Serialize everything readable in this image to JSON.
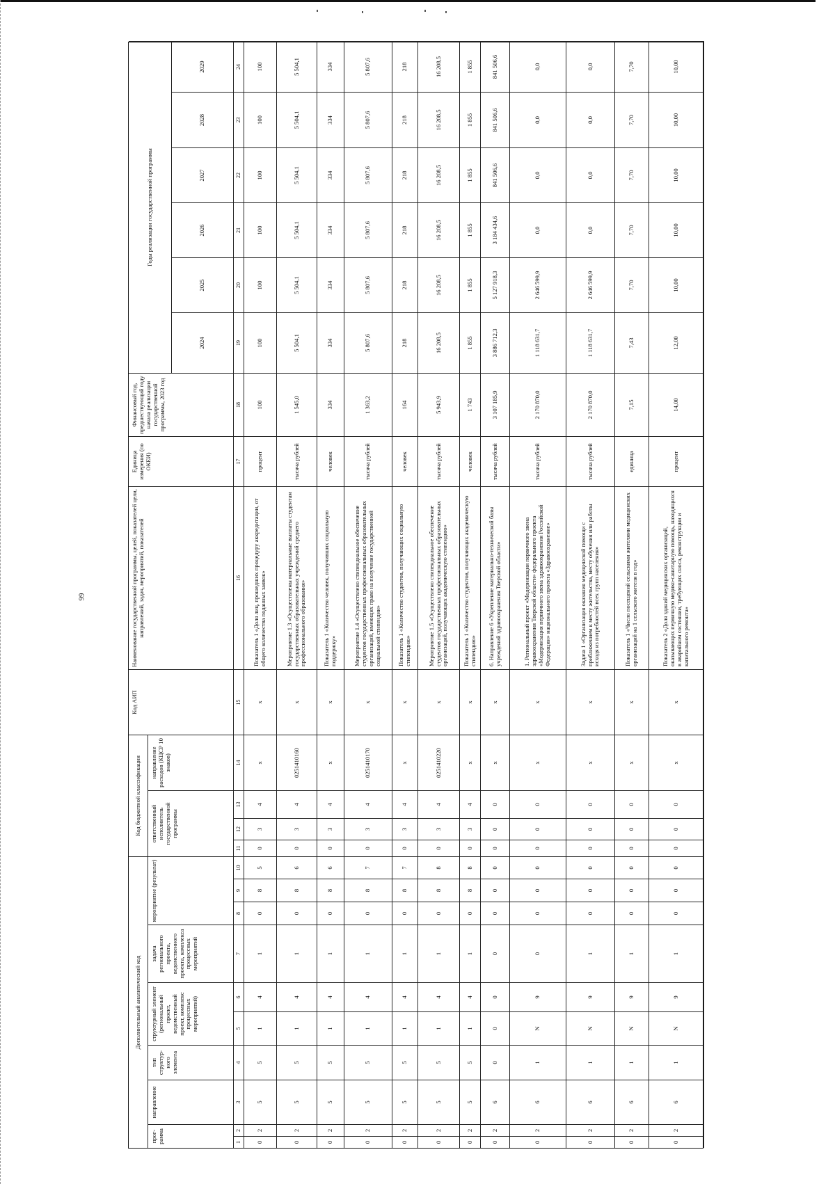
{
  "page_number": "99",
  "header": {
    "dop_code": "Дополнительный аналитический код",
    "kbk": "Код бюджетной классификации",
    "aip": "Код АИП",
    "name": "Наименование государственной программы, целей, показателей цели, направлений, задач, мероприятий, показателей",
    "unit": "Единица измерения (по ОКЕИ)",
    "base_year": "Финансовый год, предшествующий году начала реализации государственной программы, 2023 год",
    "years_group": "Годы реализации государственной программы",
    "program": "прог-рамма",
    "direction": "направление",
    "struct_type": "тип структур-ного элемента",
    "struct_element": "структурный элемент (региональный проект, ведомственный проект, комплекс процессных мероприятий)",
    "task": "задача регионального проекта, ведомственного проекта, комплекса процессных мероприятий",
    "measure": "мероприятие (результат)",
    "executor": "ответственный исполнитель государственной программы",
    "kcsr": "направление расходов (КЦСР 10 знаков)",
    "years": [
      "2024",
      "2025",
      "2026",
      "2027",
      "2028",
      "2029"
    ]
  },
  "column_numbers": [
    "1",
    "2",
    "3",
    "4",
    "5",
    "6",
    "7",
    "8",
    "9",
    "10",
    "11",
    "12",
    "13",
    "14",
    "15",
    "16",
    "17",
    "18",
    "19",
    "20",
    "21",
    "22",
    "23",
    "24"
  ],
  "rows": [
    {
      "codes": [
        "0",
        "2",
        "5",
        "5",
        "1",
        "4",
        "1",
        "0",
        "8",
        "5",
        "0",
        "3",
        "4",
        "x",
        "x"
      ],
      "name": "Показатель 1 «Доля лиц, прошедших процедуру аккредитации, от общего количества поданных заявок»",
      "unit": "процент",
      "values": [
        "100",
        "100",
        "100",
        "100",
        "100",
        "100",
        "100"
      ]
    },
    {
      "codes": [
        "0",
        "2",
        "5",
        "5",
        "1",
        "4",
        "1",
        "0",
        "8",
        "6",
        "0",
        "3",
        "4",
        "0251410160",
        "x"
      ],
      "name": "Мероприятие 1.3 «Осуществлены материальные выплаты студентам государственных образовательных учреждений среднего профессионального образования»",
      "unit": "тысяча рублей",
      "values": [
        "1 545,0",
        "5 504,1",
        "5 504,1",
        "5 504,1",
        "5 504,1",
        "5 504,1",
        "5 504,1"
      ]
    },
    {
      "codes": [
        "0",
        "2",
        "5",
        "5",
        "1",
        "4",
        "1",
        "0",
        "8",
        "6",
        "0",
        "3",
        "4",
        "x",
        "x"
      ],
      "name": "Показатель 1 «Количество человек, получивших социальную поддержку»",
      "unit": "человек",
      "values": [
        "334",
        "334",
        "334",
        "334",
        "334",
        "334",
        "334"
      ]
    },
    {
      "codes": [
        "0",
        "2",
        "5",
        "5",
        "1",
        "4",
        "1",
        "0",
        "8",
        "7",
        "0",
        "3",
        "4",
        "0251410170",
        "x"
      ],
      "name": "Мероприятие 1.4 «Осуществлено стипендиальное обеспечение студентов государственных профессиональных образовательных организаций, имеющих право на получение государственной социальной стипендии»",
      "unit": "тысяча рублей",
      "values": [
        "1 363,2",
        "5 807,6",
        "5 807,6",
        "5 807,6",
        "5 807,6",
        "5 807,6",
        "5 807,6"
      ]
    },
    {
      "codes": [
        "0",
        "2",
        "5",
        "5",
        "1",
        "4",
        "1",
        "0",
        "8",
        "7",
        "0",
        "3",
        "4",
        "x",
        "x"
      ],
      "name": "Показатель 1 «Количество студентов, получающих социальную стипендию»",
      "unit": "человек",
      "values": [
        "164",
        "218",
        "218",
        "218",
        "218",
        "218",
        "218"
      ]
    },
    {
      "codes": [
        "0",
        "2",
        "5",
        "5",
        "1",
        "4",
        "1",
        "0",
        "8",
        "8",
        "0",
        "3",
        "4",
        "0251410220",
        "x"
      ],
      "name": "Мероприятие 1.5 «Осуществлено стипендиальное обеспечение студентов государственных профессиональных образовательных организаций, получающих академическую стипендию»",
      "unit": "тысяча рублей",
      "values": [
        "5 943,9",
        "16 208,5",
        "16 208,5",
        "16 208,5",
        "16 208,5",
        "16 208,5",
        "16 208,5"
      ]
    },
    {
      "codes": [
        "0",
        "2",
        "5",
        "5",
        "1",
        "4",
        "1",
        "0",
        "8",
        "8",
        "0",
        "3",
        "4",
        "x",
        "x"
      ],
      "name": "Показатель 1 «Количество студентов, получающих академическую стипендию»",
      "unit": "человек",
      "values": [
        "1 743",
        "1 855",
        "1 855",
        "1 855",
        "1 855",
        "1 855",
        "1 855"
      ]
    },
    {
      "codes": [
        "0",
        "2",
        "6",
        "0",
        "0",
        "0",
        "0",
        "0",
        "0",
        "0",
        "0",
        "0",
        "0",
        "x",
        "x"
      ],
      "name": "6. Направление 6 «Укрепление материально-технической базы учреждений здравоохранения Тверской области»",
      "unit": "тысяча рублей",
      "values": [
        "3 107 185,9",
        "3 886 712,3",
        "5 127 918,3",
        "3 184 434,6",
        "841 506,6",
        "841 506,6",
        "841 506,6"
      ]
    },
    {
      "codes": [
        "0",
        "2",
        "6",
        "1",
        "N",
        "9",
        "0",
        "0",
        "0",
        "0",
        "0",
        "0",
        "0",
        "x",
        "x"
      ],
      "name": "1. Региональный проект «Модернизация первичного звена здравоохранения Тверской области» федерального проекта «Модернизация первичного звена здравоохранения Российской Федерации» национального проекта «Здравоохранение»",
      "unit": "тысяча рублей",
      "values": [
        "2 170 870,0",
        "1 118 631,7",
        "2 646 599,9",
        "0,0",
        "0,0",
        "0,0",
        "0,0"
      ]
    },
    {
      "codes": [
        "0",
        "2",
        "6",
        "1",
        "N",
        "9",
        "1",
        "0",
        "0",
        "0",
        "0",
        "0",
        "0",
        "x",
        "x"
      ],
      "name": "Задача 1 «Организация оказания медицинской помощи с приближением к месту жительства, месту обучения или работы исходя из потребностей всех групп населения»",
      "unit": "тысяча рублей",
      "values": [
        "2 170 870,0",
        "1 118 631,7",
        "2 646 599,9",
        "0,0",
        "0,0",
        "0,0",
        "0,0"
      ]
    },
    {
      "codes": [
        "0",
        "2",
        "6",
        "1",
        "N",
        "9",
        "1",
        "0",
        "0",
        "0",
        "0",
        "0",
        "0",
        "x",
        "x"
      ],
      "name": "Показатель 1 «Число посещений сельскими жителями медицинских организаций на 1 сельского жителя в год»",
      "unit": "единица",
      "values": [
        "7,15",
        "7,43",
        "7,70",
        "7,70",
        "7,70",
        "7,70",
        "7,70"
      ]
    },
    {
      "codes": [
        "0",
        "2",
        "6",
        "1",
        "N",
        "9",
        "1",
        "0",
        "0",
        "0",
        "0",
        "0",
        "0",
        "x",
        "x"
      ],
      "name": "Показатель 2 «Доля зданий медицинских организаций, оказывающих первичную медико-санитарную помощь, находящихся в аварийном состоянии, требующих сноса, реконструкции и капитального ремонта»",
      "unit": "процент",
      "values": [
        "14,00",
        "12,00",
        "10,00",
        "10,00",
        "10,00",
        "10,00",
        "10,00"
      ]
    }
  ]
}
